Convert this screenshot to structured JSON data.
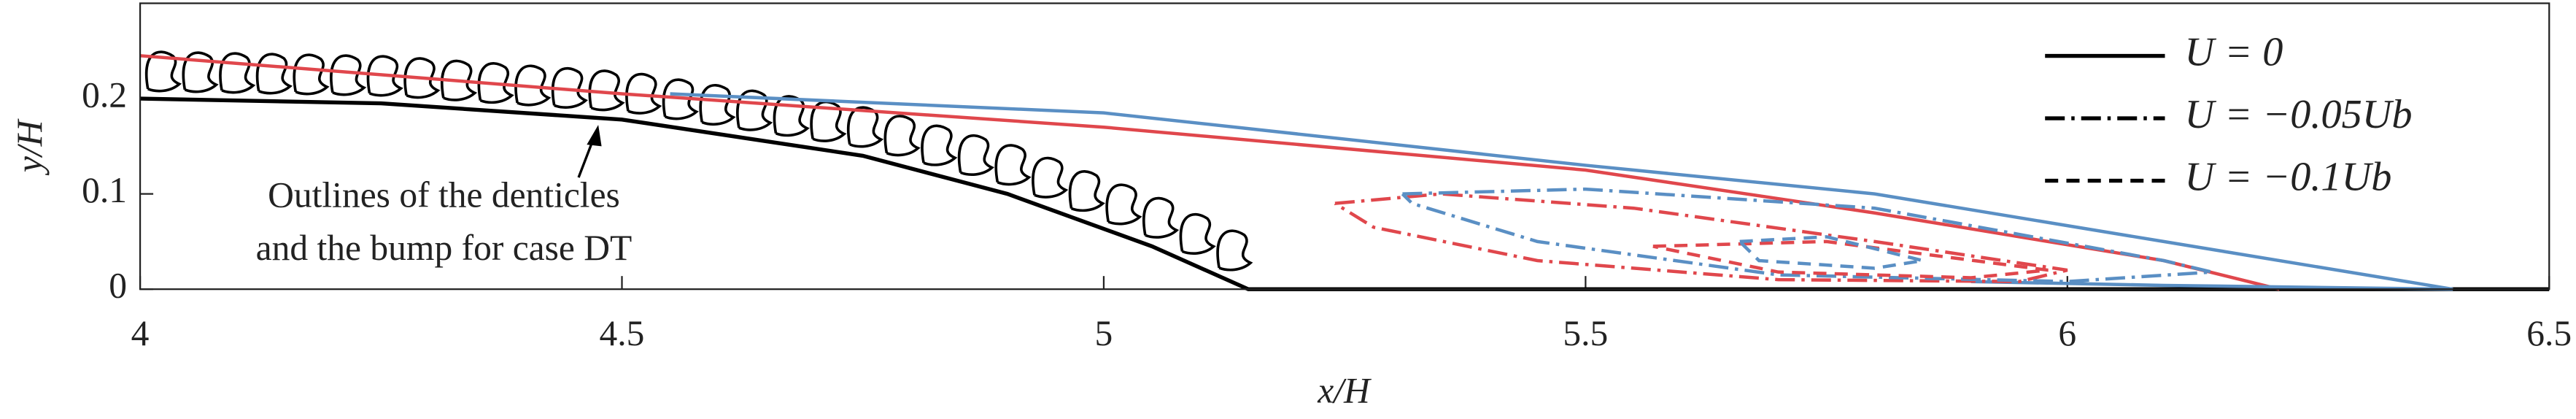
{
  "chart_data": {
    "type": "line",
    "xlabel": "x/H",
    "ylabel": "y/H",
    "xlim": [
      4,
      6.5
    ],
    "xticks": [
      4,
      4.5,
      5,
      5.5,
      6,
      6.5
    ],
    "ylim": [
      0,
      0.3
    ],
    "yticks": [
      0,
      0.1,
      0.2
    ],
    "annotation": [
      "Outlines of the denticles",
      "and the bump for case DT"
    ],
    "legend_position": "upper right",
    "legend": [
      {
        "label": "U = 0",
        "dash": "solid"
      },
      {
        "label": "U = −0.05Ub",
        "dash": "dashdot"
      },
      {
        "label": "U = −0.1Ub",
        "dash": "dashed"
      }
    ],
    "series": [
      {
        "color": "#000000",
        "dash": "solid",
        "x": [
          4,
          4.25,
          4.5,
          4.75,
          4.9,
          5.05,
          5.15,
          6.5
        ],
        "y": [
          0.2,
          0.195,
          0.178,
          0.14,
          0.1,
          0.045,
          0,
          0
        ]
      },
      {
        "color": "#e0474c",
        "dash": "solid",
        "x": [
          4,
          4.5,
          5,
          5.5,
          5.8,
          6.1,
          6.22
        ],
        "y": [
          0.245,
          0.205,
          0.17,
          0.125,
          0.08,
          0.03,
          0
        ]
      },
      {
        "color": "#5a8fc4",
        "dash": "solid",
        "x": [
          4.55,
          5,
          5.5,
          5.8,
          6.1,
          6.4,
          6.1,
          5.9
        ],
        "y": [
          0.205,
          0.185,
          0.13,
          0.1,
          0.05,
          0,
          0.004,
          0.008
        ]
      },
      {
        "color": "#e0474c",
        "dash": "dashdot",
        "x": [
          5.24,
          5.35,
          5.55,
          5.8,
          6.0,
          5.95,
          5.7,
          5.45,
          5.28,
          5.24
        ],
        "y": [
          0.09,
          0.1,
          0.085,
          0.05,
          0.02,
          0.008,
          0.01,
          0.03,
          0.065,
          0.09
        ]
      },
      {
        "color": "#5a8fc4",
        "dash": "dashdot",
        "x": [
          5.31,
          5.5,
          5.8,
          6.1,
          6.15,
          6.0,
          5.7,
          5.45,
          5.32,
          5.31
        ],
        "y": [
          0.1,
          0.105,
          0.085,
          0.03,
          0.018,
          0.008,
          0.015,
          0.05,
          0.09,
          0.1
        ]
      },
      {
        "color": "#e0474c",
        "dash": "dashed",
        "x": [
          5.57,
          5.75,
          5.98,
          5.9,
          5.7,
          5.57
        ],
        "y": [
          0.045,
          0.05,
          0.02,
          0.012,
          0.018,
          0.045
        ]
      },
      {
        "color": "#5a8fc4",
        "dash": "dashed",
        "x": [
          5.66,
          5.75,
          5.85,
          5.8,
          5.68,
          5.66
        ],
        "y": [
          0.05,
          0.055,
          0.03,
          0.022,
          0.03,
          0.05
        ]
      }
    ]
  }
}
